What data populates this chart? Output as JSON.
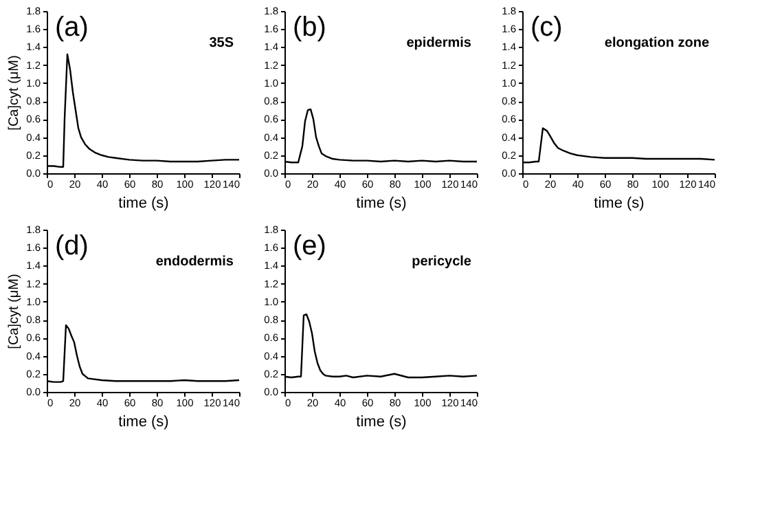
{
  "chart_data": [
    {
      "type": "line",
      "xlabel": "time (s)",
      "ylabel": "[Ca]cyt (μM)",
      "annotations": [
        "(a)",
        "35S"
      ],
      "xlim": [
        0,
        140
      ],
      "xticks": [
        0,
        20,
        40,
        60,
        80,
        100,
        120,
        140
      ],
      "ylim": [
        0,
        1.8
      ],
      "yticks": [
        {
          "value": 0,
          "label": "0.0"
        },
        {
          "value": 0.2,
          "label": "0.2"
        },
        {
          "value": 0.4,
          "label": "0.4"
        },
        {
          "value": 0.6,
          "label": "0.6"
        },
        {
          "value": 0.8,
          "label": "0.8"
        },
        {
          "value": 1.0,
          "label": "1.0"
        },
        {
          "value": 1.2,
          "label": "1.2"
        },
        {
          "value": 1.4,
          "label": "1.4"
        },
        {
          "value": 1.6,
          "label": "1.6"
        },
        {
          "value": 1.8,
          "label": "1.8"
        }
      ],
      "grid": false,
      "line_style": "solid",
      "x": [
        0,
        5,
        10,
        12,
        13,
        15,
        17,
        19,
        21,
        23,
        25,
        28,
        31,
        35,
        40,
        45,
        50,
        60,
        70,
        80,
        90,
        100,
        110,
        120,
        130,
        140
      ],
      "series": [
        {
          "color": "#000000",
          "values": [
            0.08,
            0.08,
            0.07,
            0.07,
            0.6,
            1.32,
            1.15,
            0.9,
            0.7,
            0.5,
            0.4,
            0.32,
            0.27,
            0.23,
            0.2,
            0.18,
            0.17,
            0.15,
            0.14,
            0.14,
            0.13,
            0.13,
            0.13,
            0.14,
            0.15,
            0.15
          ]
        }
      ]
    },
    {
      "type": "line",
      "xlabel": "time (s)",
      "annotations": [
        "(b)",
        "epidermis"
      ],
      "xlim": [
        0,
        140
      ],
      "xticks": [
        0,
        20,
        40,
        60,
        80,
        100,
        120,
        140
      ],
      "ylim": [
        0,
        1.8
      ],
      "yticks": [
        {
          "value": 0,
          "label": "0.0"
        },
        {
          "value": 0.2,
          "label": "0.2"
        },
        {
          "value": 0.4,
          "label": "0.4"
        },
        {
          "value": 0.6,
          "label": "0.6"
        },
        {
          "value": 0.8,
          "label": "0.8"
        },
        {
          "value": 1.0,
          "label": "1.0"
        },
        {
          "value": 1.2,
          "label": "1.2"
        },
        {
          "value": 1.4,
          "label": "1.4"
        },
        {
          "value": 1.6,
          "label": "1.6"
        },
        {
          "value": 1.8,
          "label": "1.8"
        }
      ],
      "grid": false,
      "line_style": "solid",
      "x": [
        0,
        5,
        10,
        13,
        15,
        17,
        19,
        21,
        23,
        25,
        27,
        30,
        35,
        40,
        50,
        60,
        70,
        80,
        90,
        100,
        110,
        120,
        130,
        140
      ],
      "series": [
        {
          "color": "#000000",
          "values": [
            0.13,
            0.12,
            0.12,
            0.3,
            0.58,
            0.7,
            0.71,
            0.6,
            0.4,
            0.3,
            0.22,
            0.19,
            0.16,
            0.15,
            0.14,
            0.14,
            0.13,
            0.14,
            0.13,
            0.14,
            0.13,
            0.14,
            0.13,
            0.13
          ]
        }
      ]
    },
    {
      "type": "line",
      "xlabel": "time (s)",
      "annotations": [
        "(c)",
        "elongation zone"
      ],
      "xlim": [
        0,
        140
      ],
      "xticks": [
        0,
        20,
        40,
        60,
        80,
        100,
        120,
        140
      ],
      "ylim": [
        0,
        1.8
      ],
      "yticks": [
        {
          "value": 0,
          "label": "0.0"
        },
        {
          "value": 0.2,
          "label": "0.2"
        },
        {
          "value": 0.4,
          "label": "0.4"
        },
        {
          "value": 0.6,
          "label": "0.6"
        },
        {
          "value": 0.8,
          "label": "0.8"
        },
        {
          "value": 1.0,
          "label": "1.0"
        },
        {
          "value": 1.2,
          "label": "1.2"
        },
        {
          "value": 1.4,
          "label": "1.4"
        },
        {
          "value": 1.6,
          "label": "1.6"
        },
        {
          "value": 1.8,
          "label": "1.8"
        }
      ],
      "grid": false,
      "line_style": "solid",
      "x": [
        0,
        5,
        10,
        12,
        15,
        18,
        20,
        23,
        26,
        30,
        35,
        40,
        50,
        60,
        70,
        80,
        90,
        100,
        110,
        120,
        130,
        140
      ],
      "series": [
        {
          "color": "#000000",
          "values": [
            0.12,
            0.12,
            0.13,
            0.13,
            0.5,
            0.47,
            0.42,
            0.34,
            0.28,
            0.25,
            0.22,
            0.2,
            0.18,
            0.17,
            0.17,
            0.17,
            0.16,
            0.16,
            0.16,
            0.16,
            0.16,
            0.15
          ]
        }
      ]
    },
    {
      "type": "line",
      "xlabel": "time (s)",
      "ylabel": "[Ca]cyt (μM)",
      "annotations": [
        "(d)",
        "endodermis"
      ],
      "xlim": [
        0,
        140
      ],
      "xticks": [
        0,
        20,
        40,
        60,
        80,
        100,
        120,
        140
      ],
      "ylim": [
        0,
        1.8
      ],
      "yticks": [
        {
          "value": 0,
          "label": "0.0"
        },
        {
          "value": 0.2,
          "label": "0.2"
        },
        {
          "value": 0.4,
          "label": "0.4"
        },
        {
          "value": 0.6,
          "label": "0.6"
        },
        {
          "value": 0.8,
          "label": "0.8"
        },
        {
          "value": 1.0,
          "label": "1.0"
        },
        {
          "value": 1.2,
          "label": "1.2"
        },
        {
          "value": 1.4,
          "label": "1.4"
        },
        {
          "value": 1.6,
          "label": "1.6"
        },
        {
          "value": 1.8,
          "label": "1.8"
        }
      ],
      "grid": false,
      "line_style": "solid",
      "x": [
        0,
        5,
        10,
        12,
        14,
        16,
        18,
        20,
        22,
        24,
        26,
        30,
        40,
        50,
        60,
        70,
        80,
        90,
        100,
        110,
        120,
        130,
        140
      ],
      "series": [
        {
          "color": "#000000",
          "values": [
            0.12,
            0.11,
            0.11,
            0.12,
            0.74,
            0.7,
            0.62,
            0.55,
            0.4,
            0.28,
            0.2,
            0.15,
            0.13,
            0.12,
            0.12,
            0.12,
            0.12,
            0.12,
            0.13,
            0.12,
            0.12,
            0.12,
            0.13
          ]
        }
      ]
    },
    {
      "type": "line",
      "xlabel": "time (s)",
      "annotations": [
        "(e)",
        "pericycle"
      ],
      "xlim": [
        0,
        140
      ],
      "xticks": [
        0,
        20,
        40,
        60,
        80,
        100,
        120,
        140
      ],
      "ylim": [
        0,
        1.8
      ],
      "yticks": [
        {
          "value": 0,
          "label": "0.0"
        },
        {
          "value": 0.2,
          "label": "0.2"
        },
        {
          "value": 0.4,
          "label": "0.4"
        },
        {
          "value": 0.6,
          "label": "0.6"
        },
        {
          "value": 0.8,
          "label": "0.8"
        },
        {
          "value": 1.0,
          "label": "1.0"
        },
        {
          "value": 1.2,
          "label": "1.2"
        },
        {
          "value": 1.4,
          "label": "1.4"
        },
        {
          "value": 1.6,
          "label": "1.6"
        },
        {
          "value": 1.8,
          "label": "1.8"
        }
      ],
      "grid": false,
      "line_style": "solid",
      "x": [
        0,
        5,
        10,
        12,
        14,
        16,
        18,
        20,
        22,
        24,
        26,
        28,
        30,
        35,
        40,
        45,
        50,
        60,
        70,
        80,
        90,
        100,
        110,
        120,
        130,
        140
      ],
      "series": [
        {
          "color": "#000000",
          "values": [
            0.17,
            0.16,
            0.17,
            0.17,
            0.85,
            0.86,
            0.78,
            0.65,
            0.45,
            0.32,
            0.24,
            0.2,
            0.18,
            0.17,
            0.17,
            0.18,
            0.16,
            0.18,
            0.17,
            0.2,
            0.16,
            0.16,
            0.17,
            0.18,
            0.17,
            0.18
          ]
        }
      ]
    }
  ]
}
